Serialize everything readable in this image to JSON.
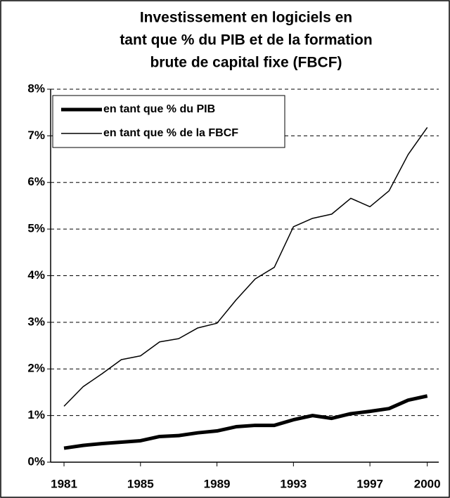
{
  "chart_data": {
    "type": "line",
    "title": [
      "Investissement en logiciels en",
      "tant que % du PIB et de la formation",
      "brute de capital fixe (FBCF)"
    ],
    "x": [
      1981,
      1982,
      1983,
      1984,
      1985,
      1986,
      1987,
      1988,
      1989,
      1990,
      1991,
      1992,
      1993,
      1994,
      1995,
      1996,
      1997,
      1998,
      1999,
      2000
    ],
    "series": [
      {
        "name": "en tant que % du PIB",
        "color": "#000000",
        "width": 5,
        "values": [
          0.3,
          0.36,
          0.4,
          0.43,
          0.46,
          0.55,
          0.57,
          0.63,
          0.67,
          0.76,
          0.79,
          0.79,
          0.91,
          1.0,
          0.94,
          1.04,
          1.09,
          1.15,
          1.33,
          1.42
        ]
      },
      {
        "name": "en tant que % de la FBCF",
        "color": "#000000",
        "width": 1.5,
        "values": [
          1.2,
          1.62,
          1.9,
          2.2,
          2.28,
          2.58,
          2.65,
          2.88,
          2.98,
          3.48,
          3.93,
          4.18,
          5.05,
          5.23,
          5.32,
          5.66,
          5.48,
          5.82,
          6.6,
          7.18
        ]
      }
    ],
    "xlim": [
      1980.3,
      2000.6
    ],
    "xticks": [
      1981,
      1985,
      1989,
      1993,
      1997,
      2000
    ],
    "ylim": [
      0,
      8
    ],
    "yticks": [
      {
        "value": 0,
        "label": "0%"
      },
      {
        "value": 1,
        "label": "1%"
      },
      {
        "value": 2,
        "label": "2%"
      },
      {
        "value": 3,
        "label": "3%"
      },
      {
        "value": 4,
        "label": "4%"
      },
      {
        "value": 5,
        "label": "5%"
      },
      {
        "value": 6,
        "label": "6%"
      },
      {
        "value": 7,
        "label": "7%"
      },
      {
        "value": 8,
        "label": "8%"
      }
    ],
    "grid": true,
    "legend": "upper left"
  }
}
